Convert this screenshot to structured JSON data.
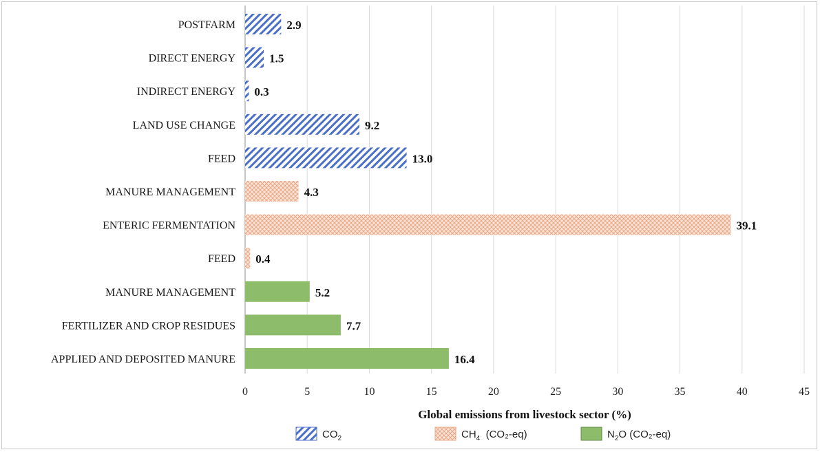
{
  "chart_data": {
    "type": "bar",
    "orientation": "horizontal",
    "title": "",
    "xlabel": "Global emissions from livestock sector (%)",
    "ylabel": "",
    "xlim": [
      0,
      45
    ],
    "xticks": [
      0,
      5,
      10,
      15,
      20,
      25,
      30,
      35,
      40,
      45
    ],
    "grid": "vertical",
    "legend_position": "bottom",
    "bars": [
      {
        "category": "POSTFARM",
        "value": 2.9,
        "label": "2.9",
        "series": "co2"
      },
      {
        "category": "DIRECT ENERGY",
        "value": 1.5,
        "label": "1.5",
        "series": "co2"
      },
      {
        "category": "INDIRECT ENERGY",
        "value": 0.3,
        "label": "0.3",
        "series": "co2"
      },
      {
        "category": "LAND USE CHANGE",
        "value": 9.2,
        "label": "9.2",
        "series": "co2"
      },
      {
        "category": "FEED",
        "value": 13.0,
        "label": "13.0",
        "series": "co2"
      },
      {
        "category": "MANURE MANAGEMENT",
        "value": 4.3,
        "label": "4.3",
        "series": "ch4"
      },
      {
        "category": "ENTERIC FERMENTATION",
        "value": 39.1,
        "label": "39.1",
        "series": "ch4"
      },
      {
        "category": "FEED",
        "value": 0.4,
        "label": "0.4",
        "series": "ch4"
      },
      {
        "category": "MANURE MANAGEMENT",
        "value": 5.2,
        "label": "5.2",
        "series": "n2o"
      },
      {
        "category": "FERTILIZER AND CROP RESIDUES",
        "value": 7.7,
        "label": "7.7",
        "series": "n2o"
      },
      {
        "category": "APPLIED AND DEPOSITED MANURE",
        "value": 16.4,
        "label": "16.4",
        "series": "n2o"
      }
    ],
    "series": [
      {
        "key": "co2",
        "name_main": "CO",
        "name_sub": "2",
        "name_rest": "",
        "fill": "hatch-diagonal",
        "color": "#4a6fc8"
      },
      {
        "key": "ch4",
        "name_main": "CH",
        "name_sub": "4",
        "name_rest": "  (CO₂-eq)",
        "fill": "hatch-cross",
        "color": "#e8a786"
      },
      {
        "key": "n2o",
        "name_main": "N",
        "name_sub": "2",
        "name_rest": "O (CO₂-eq)",
        "fill": "solid",
        "color": "#8dbd6b"
      }
    ]
  }
}
